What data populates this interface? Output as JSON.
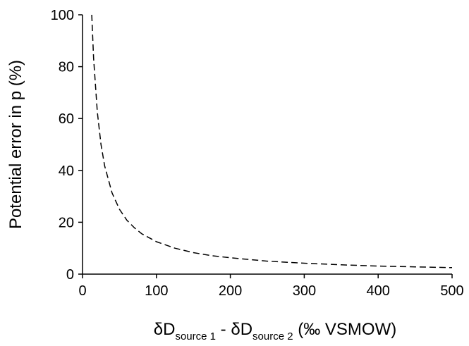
{
  "chart_data": {
    "type": "line",
    "title": "",
    "xlabel": {
      "prefix": "δD",
      "sub1": "source 1",
      "middle": " - δD",
      "sub2": "source 2",
      "suffix": " (‰ VSMOW)"
    },
    "ylabel": "Potential error in p (%)",
    "xlim": [
      0,
      500
    ],
    "ylim": [
      0,
      100
    ],
    "xticks": [
      0,
      100,
      200,
      300,
      400,
      500
    ],
    "yticks": [
      0,
      20,
      40,
      60,
      80,
      100
    ],
    "grid": false,
    "legend": "none",
    "series": [
      {
        "line_style": "dashed",
        "color": "#000000",
        "x": [
          12.5,
          15,
          20,
          25,
          30,
          40,
          50,
          60,
          70,
          80,
          100,
          125,
          150,
          175,
          200,
          250,
          300,
          350,
          400,
          450,
          500
        ],
        "y": [
          100,
          83.3,
          62.5,
          50,
          41.7,
          31.3,
          25,
          20.8,
          17.9,
          15.6,
          12.5,
          10,
          8.3,
          7.1,
          6.3,
          5,
          4.2,
          3.6,
          3.1,
          2.8,
          2.5
        ]
      }
    ]
  }
}
